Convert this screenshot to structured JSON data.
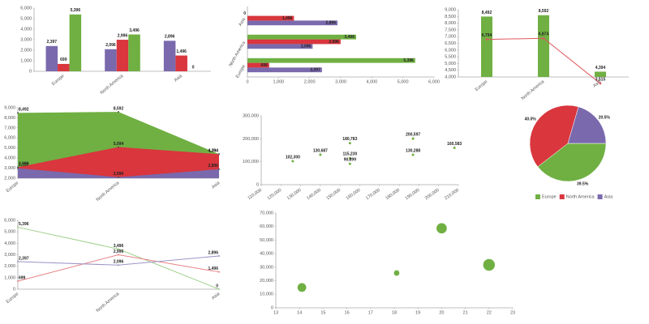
{
  "chart_data": [
    {
      "type": "bar",
      "categories": [
        "Europe",
        "North America",
        "Asia"
      ],
      "series": [
        {
          "color": "#7a69ad",
          "values": [
            2397,
            2096,
            2896
          ],
          "value_labels": [
            "2,397",
            "2,096",
            "2,896"
          ]
        },
        {
          "color": "#d9363e",
          "values": [
            699,
            2996,
            1496
          ],
          "value_labels": [
            "699",
            "2,996",
            "1,496"
          ]
        },
        {
          "color": "#70b043",
          "values": [
            5396,
            3496,
            0
          ],
          "value_labels": [
            "5,396",
            "3,496",
            "0"
          ]
        }
      ],
      "ylim": [
        0,
        6000
      ],
      "yticks": [
        0,
        {
          "value": 1000,
          "label": "1,000"
        },
        {
          "value": 2000,
          "label": "2,000"
        },
        {
          "value": 3000,
          "label": "3,000"
        },
        {
          "value": 4000,
          "label": "4,000"
        },
        {
          "value": 5000,
          "label": "5,000"
        },
        {
          "value": 6000,
          "label": "6,000"
        }
      ],
      "grid": false
    },
    {
      "type": "bar",
      "horizontal": true,
      "categories": [
        "Europe",
        "North America",
        "Asia"
      ],
      "series": [
        {
          "color": "#7a69ad",
          "values": [
            2397,
            2096,
            2896
          ],
          "value_labels": [
            "2,397",
            "2,096",
            "2,896"
          ]
        },
        {
          "color": "#d9363e",
          "values": [
            699,
            2996,
            1496
          ],
          "value_labels": [
            "699",
            "2,996",
            "1,496"
          ]
        },
        {
          "color": "#70b043",
          "values": [
            5396,
            3496,
            0
          ],
          "value_labels": [
            "5,396",
            "3,496",
            "0"
          ]
        }
      ],
      "xlim": [
        0,
        6000
      ],
      "xticks": [
        0,
        {
          "value": 1000,
          "label": "1,000"
        },
        {
          "value": 2000,
          "label": "2,000"
        },
        {
          "value": 3000,
          "label": "3,000"
        },
        {
          "value": 4000,
          "label": "4,000"
        },
        {
          "value": 5000,
          "label": "5,000"
        },
        {
          "value": 6000,
          "label": "6,000"
        }
      ],
      "grid": false
    },
    {
      "type": "combo",
      "categories": [
        "Europe",
        "North America",
        "Asia"
      ],
      "series": [
        {
          "type": "bar",
          "color": "#70b043",
          "values": [
            8492,
            8592,
            4394
          ],
          "value_labels": [
            "8,492",
            "8,592",
            "4,394"
          ]
        },
        {
          "type": "line",
          "color": "#e0585e",
          "values": [
            6794,
            6874,
            3515
          ],
          "value_labels": [
            "6,794",
            "6,874",
            "3,515"
          ]
        }
      ],
      "ylim": [
        4000,
        9000
      ],
      "yticks": [
        {
          "value": 4000,
          "label": "4,000"
        },
        {
          "value": 4500,
          "label": "4,500"
        },
        {
          "value": 5000,
          "label": "5,000"
        },
        {
          "value": 5500,
          "label": "5,500"
        },
        {
          "value": 6000,
          "label": "6,000"
        },
        {
          "value": 6500,
          "label": "6,500"
        },
        {
          "value": 7000,
          "label": "7,000"
        },
        {
          "value": 7500,
          "label": "7,500"
        },
        {
          "value": 8000,
          "label": "8,000"
        },
        {
          "value": 8500,
          "label": "8,500"
        },
        {
          "value": 9000,
          "label": "9,000"
        }
      ],
      "grid": false
    },
    {
      "type": "area",
      "categories": [
        "Europe",
        "North America",
        "Asia"
      ],
      "series": [
        {
          "color": "#70b043",
          "values": [
            8492,
            8592,
            4394
          ],
          "value_labels": [
            "8,492",
            "8,592",
            "4,394"
          ]
        },
        {
          "color": "#d9363e",
          "values": [
            3096,
            5094,
            4394
          ],
          "value_labels": [
            "3,096",
            "5,094",
            "4,394"
          ]
        },
        {
          "color": "#7a69ad",
          "values": [
            2997,
            2096,
            2896
          ],
          "value_labels": [
            "2,997",
            "2,096",
            "2,896"
          ]
        }
      ],
      "ylim": [
        2000,
        9000
      ],
      "yticks": [
        {
          "value": 2000,
          "label": "2,000"
        },
        {
          "value": 3000,
          "label": "3,000"
        },
        {
          "value": 4000,
          "label": "4,000"
        },
        {
          "value": 5000,
          "label": "5,000"
        },
        {
          "value": 6000,
          "label": "6,000"
        },
        {
          "value": 7000,
          "label": "7,000"
        },
        {
          "value": 8000,
          "label": "8,000"
        },
        {
          "value": 9000,
          "label": "9,000"
        }
      ],
      "grid": false
    },
    {
      "type": "scatter",
      "color": "#70b043",
      "x": [
        126000,
        140000,
        155000,
        155000,
        155000,
        187000,
        187000,
        208000
      ],
      "values": [
        102300,
        130687,
        180783,
        115230,
        90899,
        200597,
        130288,
        160583
      ],
      "value_labels": [
        "102,300",
        "130,687",
        "180,783",
        "115,230",
        "90,899",
        "200,597",
        "130,288",
        "160,583"
      ],
      "xlim": [
        110000,
        210000
      ],
      "xticks": [
        {
          "value": 110000,
          "label": "110,000"
        },
        {
          "value": 120000,
          "label": "120,000"
        },
        {
          "value": 130000,
          "label": "130,000"
        },
        {
          "value": 140000,
          "label": "140,000"
        },
        {
          "value": 150000,
          "label": "150,000"
        },
        {
          "value": 160000,
          "label": "160,000"
        },
        {
          "value": 170000,
          "label": "170,000"
        },
        {
          "value": 180000,
          "label": "180,000"
        },
        {
          "value": 190000,
          "label": "190,000"
        },
        {
          "value": 200000,
          "label": "200,000"
        },
        {
          "value": 210000,
          "label": "210,000"
        }
      ],
      "ylim": [
        0,
        300000
      ],
      "yticks": [
        0,
        {
          "value": 100000,
          "label": "100,000"
        },
        {
          "value": 200000,
          "label": "200,000"
        },
        {
          "value": 300000,
          "label": "300,000"
        }
      ],
      "grid": false
    },
    {
      "type": "pie",
      "categories": [
        "Europe",
        "North America",
        "Asia"
      ],
      "values": [
        39.5,
        40.0,
        20.5
      ],
      "value_labels": [
        "39.5%",
        "40.0%",
        "20.5%"
      ],
      "colors": [
        "#70b043",
        "#d9363e",
        "#7a69ad"
      ],
      "legend": "bottom"
    },
    {
      "type": "line",
      "categories": [
        "Europe",
        "North America",
        "Asia"
      ],
      "series": [
        {
          "color": "#9fd08a",
          "values": [
            5396,
            3496,
            0
          ],
          "value_labels": [
            "5,396",
            "3,496",
            "0"
          ]
        },
        {
          "color": "#e88286",
          "values": [
            699,
            2996,
            1496
          ],
          "value_labels": [
            "699",
            "2,996",
            "1,496"
          ]
        },
        {
          "color": "#9f94c8",
          "values": [
            2397,
            2096,
            2896
          ],
          "value_labels": [
            "2,397",
            "2,096",
            "2,896"
          ]
        }
      ],
      "ylim": [
        0,
        6000
      ],
      "yticks": [
        0,
        {
          "value": 1000,
          "label": "1,000"
        },
        {
          "value": 2000,
          "label": "2,000"
        },
        {
          "value": 3000,
          "label": "3,000"
        },
        {
          "value": 4000,
          "label": "4,000"
        },
        {
          "value": 5000,
          "label": "5,000"
        },
        {
          "value": 6000,
          "label": "6,000"
        }
      ],
      "grid": false
    },
    {
      "type": "bubble",
      "color": "#70b043",
      "x": [
        14.1,
        18.1,
        20.0,
        22.0
      ],
      "values": [
        15000,
        25700,
        58700,
        31700
      ],
      "sizes": [
        10,
        4,
        14,
        18
      ],
      "xlim": [
        13,
        23
      ],
      "xticks": [
        13,
        14,
        15,
        16,
        17,
        18,
        19,
        20,
        21,
        22,
        23
      ],
      "ylim": [
        0,
        70000
      ],
      "yticks": [
        0,
        {
          "value": 10000,
          "label": "10,000"
        },
        {
          "value": 20000,
          "label": "20,000"
        },
        {
          "value": 30000,
          "label": "30,000"
        },
        {
          "value": 40000,
          "label": "40,000"
        },
        {
          "value": 50000,
          "label": "50,000"
        },
        {
          "value": 60000,
          "label": "60,000"
        },
        {
          "value": 70000,
          "label": "70,000"
        }
      ],
      "grid": false
    }
  ]
}
